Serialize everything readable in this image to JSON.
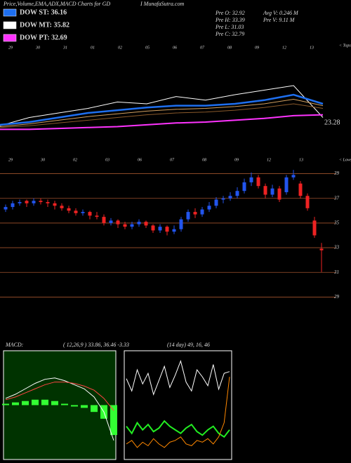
{
  "header": {
    "title": "Price,Volume,EMA,ADX,MACD Charts for GD",
    "site": "I MunafaSutra.com"
  },
  "legend": [
    {
      "label": "DOW ST: 36.16",
      "color": "#1e6ff0"
    },
    {
      "label": "DOW MT: 35.82",
      "color": "#ffffff"
    },
    {
      "label": "DOW PT: 32.69",
      "color": "#ff33ff"
    }
  ],
  "stats": [
    "Pre O: 32.92",
    "Pre H: 33.39",
    "Pre L: 31.03",
    "Pre C: 32.79",
    "Avg V: 0.246 M",
    "Pre V: 9.11 M"
  ],
  "chart_data": [
    {
      "type": "line",
      "tops_label": "< Tops",
      "lows_label": "< Lows",
      "annotation": "23.28",
      "top_labels": [
        "29",
        "30",
        "31",
        "01",
        "02",
        "05",
        "06",
        "07",
        "08",
        "09",
        "12",
        "13"
      ],
      "bottom_labels": [
        "29",
        "30",
        "02",
        "03",
        "06",
        "07",
        "08",
        "09",
        "12",
        "13"
      ],
      "ylim": [
        0,
        100
      ],
      "series": [
        {
          "color": "#ffffff",
          "values": [
            16,
            25,
            30,
            35,
            42,
            40,
            48,
            44,
            50,
            55,
            60,
            25
          ]
        },
        {
          "color": "#8b5a2b",
          "values": [
            14,
            16,
            19,
            22,
            25,
            28,
            30,
            31,
            33,
            36,
            40,
            35
          ]
        },
        {
          "color": "#d2a060",
          "values": [
            15,
            18,
            22,
            26,
            29,
            32,
            34,
            35,
            37,
            40,
            45,
            38
          ]
        },
        {
          "color": "#1e6ff0",
          "values": [
            17,
            20,
            25,
            30,
            33,
            36,
            38,
            38,
            40,
            44,
            50,
            40
          ]
        },
        {
          "color": "#ff33ff",
          "values": [
            12,
            12,
            13,
            14,
            15,
            17,
            19,
            20,
            22,
            24,
            27,
            28
          ]
        }
      ]
    },
    {
      "type": "candlestick",
      "ylim": [
        28,
        40
      ],
      "yticks": [
        29,
        31,
        33,
        35,
        37,
        39
      ],
      "up_color": "#2255ee",
      "down_color": "#ee2222",
      "grid_color": "#a0522d",
      "open": [
        36.1,
        36.3,
        36.6,
        36.8,
        36.6,
        36.8,
        36.7,
        36.6,
        36.4,
        36.2,
        36.0,
        35.8,
        35.9,
        35.6,
        35.5,
        35.0,
        35.2,
        34.9,
        34.7,
        34.9,
        35.1,
        34.8,
        34.4,
        34.7,
        34.3,
        34.5,
        35.3,
        35.9,
        35.7,
        36.1,
        36.4,
        36.9,
        37.0,
        37.2,
        37.6,
        38.3,
        38.7,
        38.0,
        37.3,
        37.8,
        37.5,
        38.7,
        38.2,
        37.2,
        35.2,
        32.92
      ],
      "high": [
        36.5,
        36.8,
        36.9,
        36.9,
        37.0,
        37.0,
        36.9,
        36.8,
        36.6,
        36.4,
        36.2,
        36.1,
        36.0,
        35.9,
        35.7,
        35.4,
        35.3,
        35.1,
        35.1,
        35.3,
        35.2,
        34.9,
        34.9,
        34.8,
        34.8,
        35.5,
        36.1,
        36.2,
        36.3,
        36.7,
        37.1,
        37.2,
        37.5,
        37.9,
        38.6,
        39.1,
        38.9,
        38.2,
        38.1,
        38.0,
        38.9,
        39.3,
        38.4,
        37.4,
        35.5,
        33.39
      ],
      "low": [
        35.9,
        36.1,
        36.4,
        36.3,
        36.4,
        36.5,
        36.3,
        36.1,
        36.0,
        35.8,
        35.6,
        35.6,
        35.3,
        35.3,
        34.8,
        34.8,
        34.6,
        34.5,
        34.5,
        34.7,
        34.6,
        34.2,
        34.2,
        34.0,
        34.1,
        34.3,
        35.1,
        35.4,
        35.5,
        35.9,
        36.2,
        36.6,
        36.8,
        37.0,
        37.4,
        38.0,
        37.8,
        37.0,
        37.1,
        36.7,
        37.3,
        38.5,
        37.0,
        36.0,
        33.8,
        31.03
      ],
      "close": [
        36.3,
        36.6,
        36.7,
        36.6,
        36.8,
        36.7,
        36.6,
        36.4,
        36.2,
        36.0,
        35.8,
        35.9,
        35.6,
        35.5,
        35.0,
        35.2,
        34.9,
        34.7,
        34.9,
        35.1,
        34.8,
        34.4,
        34.7,
        34.3,
        34.5,
        35.3,
        35.9,
        35.7,
        36.1,
        36.4,
        36.9,
        37.0,
        37.2,
        37.6,
        38.3,
        38.7,
        38.0,
        37.3,
        37.8,
        36.9,
        38.7,
        38.9,
        37.2,
        36.2,
        34.0,
        32.79
      ]
    },
    {
      "type": "macd",
      "label": "MACD:",
      "params": "( 12,26,9 ) 33.86, 36.46 -3.33",
      "ylim": [
        -4,
        4
      ],
      "bg": "#003300",
      "hist_color": "#33ff33",
      "macd": [
        0.5,
        0.8,
        1.2,
        1.6,
        1.9,
        2.0,
        1.8,
        1.5,
        1.2,
        0.6,
        -0.5,
        -2.6
      ],
      "signal": [
        0.4,
        0.6,
        0.9,
        1.2,
        1.5,
        1.7,
        1.7,
        1.6,
        1.4,
        1.1,
        0.5,
        -0.4
      ],
      "histogram": [
        0.1,
        0.2,
        0.3,
        0.4,
        0.4,
        0.3,
        0.1,
        -0.1,
        -0.2,
        -0.5,
        -1.0,
        -2.2
      ]
    },
    {
      "type": "adx",
      "label": "(14 day) 49, 16, 46",
      "ylim": [
        0,
        60
      ],
      "series": [
        {
          "color": "#ffffff",
          "values": [
            45,
            38,
            50,
            42,
            48,
            36,
            44,
            52,
            40,
            47,
            55,
            43,
            38,
            50,
            46,
            41,
            53,
            39,
            48,
            49
          ]
        },
        {
          "color": "#22ee22",
          "values": [
            18,
            14,
            20,
            16,
            19,
            15,
            17,
            21,
            18,
            16,
            14,
            17,
            19,
            15,
            13,
            16,
            18,
            14,
            12,
            16
          ]
        },
        {
          "color": "#ff8800",
          "values": [
            8,
            10,
            6,
            9,
            7,
            11,
            8,
            6,
            9,
            10,
            12,
            8,
            7,
            10,
            9,
            11,
            8,
            12,
            20,
            46
          ]
        }
      ]
    }
  ]
}
